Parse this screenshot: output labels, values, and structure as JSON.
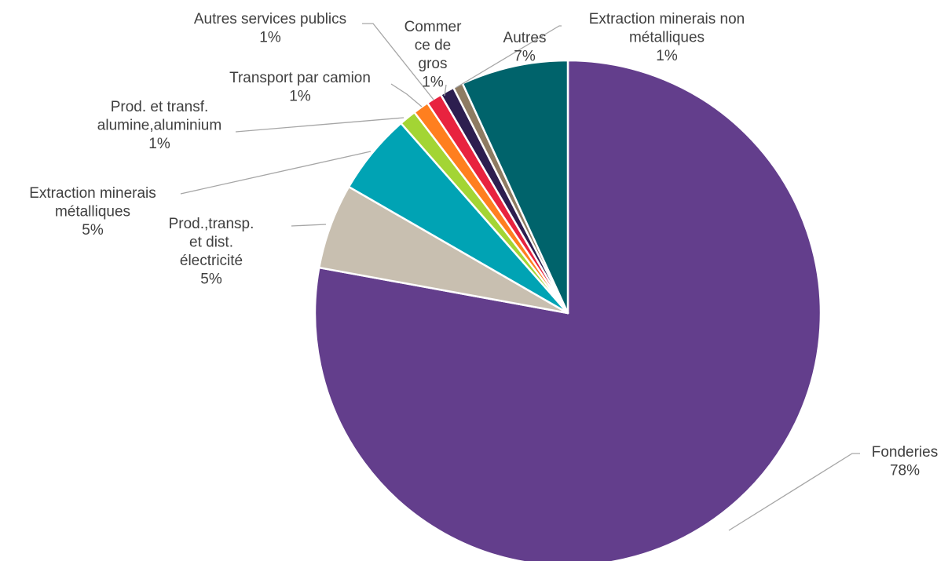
{
  "chart_data": {
    "type": "pie",
    "slices": [
      {
        "name": "Fonderies",
        "value": 78,
        "label": "78%",
        "color": "#633e8c"
      },
      {
        "name": "Prod.,transp. et dist. électricité",
        "value": 5,
        "label": "5%",
        "color": "#c8bfb0"
      },
      {
        "name": "Extraction minerais métalliques",
        "value": 5,
        "label": "5%",
        "color": "#00a3b4"
      },
      {
        "name": "Prod. et transf. alumine,aluminium",
        "value": 1,
        "label": "1%",
        "color": "#a3d534"
      },
      {
        "name": "Transport par camion",
        "value": 1,
        "label": "1%",
        "color": "#ff7f1f"
      },
      {
        "name": "Autres services publics",
        "value": 1,
        "label": "1%",
        "color": "#e8233f"
      },
      {
        "name": "Commerce de gros",
        "value": 1,
        "label": "1%",
        "color": "#2d1e4f"
      },
      {
        "name": "Extraction minerais non métalliques",
        "value": 1,
        "label": "1%",
        "color": "#8e7b62"
      },
      {
        "name": "Autres",
        "value": 7,
        "label": "7%",
        "color": "#00636b"
      }
    ]
  },
  "labels": [
    {
      "lines": [
        "Fonderies",
        "78%"
      ]
    },
    {
      "lines": [
        "Prod.,transp.",
        "et dist.",
        "électricité",
        "5%"
      ]
    },
    {
      "lines": [
        "Extraction minerais",
        "métalliques",
        "5%"
      ]
    },
    {
      "lines": [
        "Prod. et transf.",
        "alumine,aluminium",
        "1%"
      ]
    },
    {
      "lines": [
        "Transport par camion",
        "1%"
      ]
    },
    {
      "lines": [
        "Autres services publics",
        "1%"
      ]
    },
    {
      "lines": [
        "Commer",
        "ce de",
        "gros",
        "1%"
      ]
    },
    {
      "lines": [
        "Extraction minerais non",
        "métalliques",
        "1%"
      ]
    },
    {
      "lines": [
        "Autres",
        "7%"
      ]
    }
  ]
}
